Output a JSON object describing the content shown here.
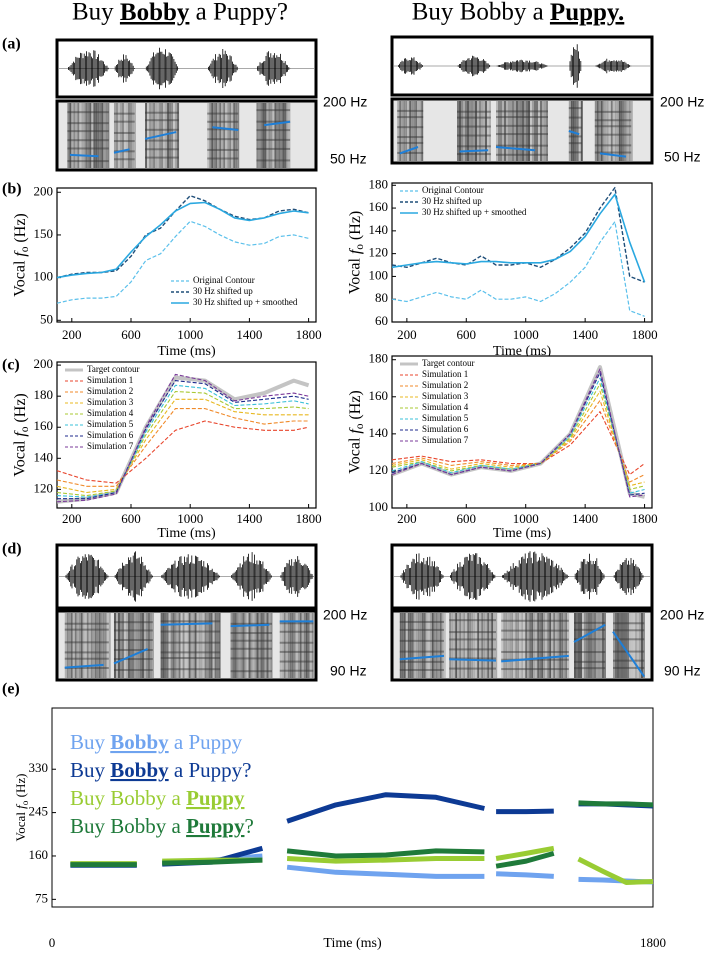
{
  "titles": [
    {
      "text": "Buy Bobby a Puppy?",
      "emphasis": "Bobby"
    },
    {
      "text": "Buy Bobby a Puppy.",
      "emphasis": "Puppy."
    }
  ],
  "panel_labels": [
    "(a)",
    "(b)",
    "(c)",
    "(d)",
    "(e)"
  ],
  "spectrogram_a": {
    "top_label": "200 Hz",
    "bottom_label": "50 Hz"
  },
  "spectrogram_d": {
    "top_label": "200 Hz",
    "bottom_label": "90 Hz"
  },
  "chart_data": [
    {
      "type": "line",
      "xlabel": "Time (ms)",
      "ylabel": "Vocal fo (Hz)",
      "xlim": [
        100,
        1850
      ],
      "xticks": [
        200,
        600,
        1000,
        1400,
        1800
      ],
      "ylim": [
        48,
        205
      ],
      "yticks": [
        50,
        100,
        150,
        200
      ],
      "legend": "lower right",
      "x": [
        100,
        200,
        300,
        400,
        500,
        600,
        700,
        800,
        900,
        1000,
        1100,
        1200,
        1300,
        1400,
        1500,
        1600,
        1700,
        1800
      ],
      "series": [
        {
          "name": "Original Contour",
          "color": "#5bc0eb",
          "dash": true,
          "width": 1.2,
          "values": [
            70,
            74,
            76,
            76,
            78,
            95,
            120,
            128,
            148,
            166,
            160,
            150,
            142,
            138,
            140,
            148,
            150,
            146
          ]
        },
        {
          "name": "30 Hz shifted up",
          "color": "#1f4e79",
          "dash": true,
          "width": 1.4,
          "values": [
            100,
            104,
            106,
            106,
            108,
            125,
            150,
            158,
            178,
            196,
            190,
            180,
            172,
            168,
            170,
            178,
            180,
            176
          ]
        },
        {
          "name": "30 Hz shifted up + smoothed",
          "color": "#2aa8e0",
          "dash": false,
          "width": 1.6,
          "values": [
            100,
            103,
            105,
            106,
            110,
            130,
            148,
            162,
            178,
            187,
            188,
            180,
            170,
            167,
            170,
            175,
            178,
            176
          ]
        }
      ]
    },
    {
      "type": "line",
      "xlabel": "Time (ms)",
      "ylabel": "Vocal fo (Hz)",
      "xlim": [
        100,
        1850
      ],
      "xticks": [
        200,
        600,
        1000,
        1400,
        1800
      ],
      "ylim": [
        60,
        182
      ],
      "yticks": [
        60,
        80,
        100,
        120,
        140,
        160,
        180
      ],
      "legend": "upper left",
      "x": [
        100,
        200,
        300,
        400,
        500,
        600,
        700,
        800,
        900,
        1000,
        1100,
        1200,
        1300,
        1400,
        1500,
        1600,
        1700,
        1800
      ],
      "series": [
        {
          "name": "Original Contour",
          "color": "#5bc0eb",
          "dash": true,
          "width": 1.2,
          "values": [
            80,
            78,
            82,
            86,
            82,
            80,
            88,
            80,
            80,
            82,
            78,
            85,
            95,
            108,
            130,
            148,
            70,
            65
          ]
        },
        {
          "name": "30 Hz shifted up",
          "color": "#1f4e79",
          "dash": true,
          "width": 1.4,
          "values": [
            110,
            108,
            112,
            116,
            112,
            110,
            118,
            110,
            110,
            112,
            108,
            115,
            125,
            138,
            160,
            178,
            100,
            95
          ]
        },
        {
          "name": "30 Hz shifted up + smoothed",
          "color": "#2aa8e0",
          "dash": false,
          "width": 1.6,
          "values": [
            108,
            110,
            112,
            113,
            112,
            111,
            113,
            113,
            112,
            112,
            112,
            115,
            122,
            135,
            155,
            172,
            130,
            95
          ]
        }
      ]
    },
    {
      "type": "line",
      "xlabel": "Time (ms)",
      "ylabel": "Vocal fo (Hz)",
      "xlim": [
        100,
        1850
      ],
      "xticks": [
        200,
        600,
        1000,
        1400,
        1800
      ],
      "ylim": [
        108,
        202
      ],
      "yticks": [
        120,
        140,
        160,
        180,
        200
      ],
      "legend": "upper left",
      "x": [
        100,
        300,
        500,
        700,
        900,
        1100,
        1300,
        1500,
        1700,
        1800
      ],
      "series": [
        {
          "name": "Target contour",
          "color": "#c4c4c4",
          "dash": false,
          "width": 4,
          "values": [
            112,
            114,
            118,
            160,
            192,
            190,
            178,
            182,
            190,
            187
          ]
        },
        {
          "name": "Simulation 1",
          "color": "#e8452c",
          "dash": true,
          "width": 1.1,
          "values": [
            132,
            126,
            124,
            140,
            158,
            164,
            160,
            158,
            158,
            160
          ]
        },
        {
          "name": "Simulation 2",
          "color": "#f08a2a",
          "dash": true,
          "width": 1.1,
          "values": [
            126,
            122,
            122,
            148,
            172,
            172,
            166,
            162,
            164,
            164
          ]
        },
        {
          "name": "Simulation 3",
          "color": "#e8b820",
          "dash": true,
          "width": 1.1,
          "values": [
            122,
            118,
            120,
            152,
            178,
            178,
            170,
            168,
            168,
            168
          ]
        },
        {
          "name": "Simulation 4",
          "color": "#a8c832",
          "dash": true,
          "width": 1.1,
          "values": [
            118,
            116,
            119,
            155,
            183,
            182,
            172,
            172,
            173,
            172
          ]
        },
        {
          "name": "Simulation 5",
          "color": "#3ac0d8",
          "dash": true,
          "width": 1.1,
          "values": [
            116,
            115,
            118,
            157,
            187,
            185,
            174,
            175,
            177,
            175
          ]
        },
        {
          "name": "Simulation 6",
          "color": "#1c2a8c",
          "dash": true,
          "width": 1.1,
          "values": [
            114,
            114,
            118,
            159,
            190,
            188,
            176,
            178,
            180,
            178
          ]
        },
        {
          "name": "Simulation 7",
          "color": "#7a3a9a",
          "dash": true,
          "width": 1.1,
          "values": [
            112,
            113,
            117,
            160,
            194,
            190,
            177,
            180,
            182,
            180
          ]
        }
      ]
    },
    {
      "type": "line",
      "xlabel": "Time (ms)",
      "ylabel": "Vocal fo (Hz)",
      "xlim": [
        100,
        1850
      ],
      "xticks": [
        200,
        600,
        1000,
        1400,
        1800
      ],
      "ylim": [
        100,
        182
      ],
      "yticks": [
        100,
        120,
        140,
        160,
        180
      ],
      "legend": "upper left",
      "x": [
        100,
        300,
        500,
        700,
        900,
        1100,
        1300,
        1500,
        1700,
        1800
      ],
      "series": [
        {
          "name": "Target contour",
          "color": "#c4c4c4",
          "dash": false,
          "width": 4,
          "values": [
            118,
            124,
            118,
            122,
            120,
            124,
            140,
            176,
            108,
            106
          ]
        },
        {
          "name": "Simulation 1",
          "color": "#e8452c",
          "dash": true,
          "width": 1.1,
          "values": [
            126,
            128,
            125,
            126,
            124,
            124,
            134,
            152,
            118,
            124
          ]
        },
        {
          "name": "Simulation 2",
          "color": "#f08a2a",
          "dash": true,
          "width": 1.1,
          "values": [
            124,
            127,
            123,
            125,
            123,
            124,
            136,
            158,
            114,
            118
          ]
        },
        {
          "name": "Simulation 3",
          "color": "#e8b820",
          "dash": true,
          "width": 1.1,
          "values": [
            123,
            126,
            121,
            124,
            122,
            124,
            137,
            163,
            112,
            114
          ]
        },
        {
          "name": "Simulation 4",
          "color": "#a8c832",
          "dash": true,
          "width": 1.1,
          "values": [
            122,
            125,
            120,
            123,
            121,
            124,
            138,
            167,
            110,
            112
          ]
        },
        {
          "name": "Simulation 5",
          "color": "#3ac0d8",
          "dash": true,
          "width": 1.1,
          "values": [
            120,
            125,
            119,
            123,
            121,
            124,
            139,
            170,
            108,
            110
          ]
        },
        {
          "name": "Simulation 6",
          "color": "#1c2a8c",
          "dash": true,
          "width": 1.1,
          "values": [
            119,
            124,
            118,
            122,
            120,
            124,
            140,
            173,
            107,
            108
          ]
        },
        {
          "name": "Simulation 7",
          "color": "#7a3a9a",
          "dash": true,
          "width": 1.1,
          "values": [
            118,
            124,
            118,
            122,
            120,
            124,
            140,
            175,
            106,
            107
          ]
        }
      ]
    },
    {
      "type": "line",
      "xlabel": "Time (ms)",
      "ylabel": "Vocal fo (Hz)",
      "xlim": [
        0,
        1800
      ],
      "xticks": [
        0,
        1800
      ],
      "ylim": [
        60,
        450
      ],
      "yticks": [
        75,
        160,
        245,
        330
      ],
      "legend": "upper left",
      "x": [
        55,
        150,
        254,
        290,
        330,
        480,
        630,
        667,
        704,
        850,
        1000,
        1150,
        1295,
        1312,
        1330,
        1420,
        1503,
        1540,
        1577,
        1650,
        1720,
        1800
      ],
      "series": [
        {
          "name": "Buy Bobby a Puppy",
          "emphasis": "Bobby",
          "color": "#6fa3ef",
          "dash": false,
          "width": 5,
          "values": [
            144,
            144,
            143,
            null,
            147,
            152,
            160,
            null,
            138,
            128,
            124,
            120,
            120,
            null,
            125,
            123,
            120,
            null,
            114,
            113,
            111,
            109
          ]
        },
        {
          "name": "Buy Bobby a Puppy?",
          "emphasis": "Bobby",
          "color": "#0d3a94",
          "dash": false,
          "width": 5,
          "values": [
            142,
            142,
            142,
            null,
            144,
            148,
            175,
            null,
            228,
            260,
            280,
            275,
            253,
            null,
            247,
            247,
            248,
            null,
            262,
            262,
            260,
            258
          ]
        },
        {
          "name": "Buy Bobby a Puppy",
          "emphasis": "Puppy",
          "color": "#99cc33",
          "dash": false,
          "width": 5,
          "values": [
            145,
            145,
            145,
            null,
            150,
            152,
            152,
            null,
            155,
            150,
            152,
            155,
            155,
            null,
            155,
            165,
            175,
            null,
            154,
            130,
            108,
            110
          ]
        },
        {
          "name": "Buy Bobby a Puppy?",
          "emphasis": "Puppy",
          "color": "#1f7a3a",
          "dash": false,
          "width": 5,
          "values": [
            143,
            143,
            143,
            null,
            146,
            148,
            152,
            null,
            170,
            160,
            162,
            170,
            168,
            null,
            140,
            150,
            165,
            null,
            264,
            262,
            262,
            260
          ]
        }
      ]
    }
  ]
}
